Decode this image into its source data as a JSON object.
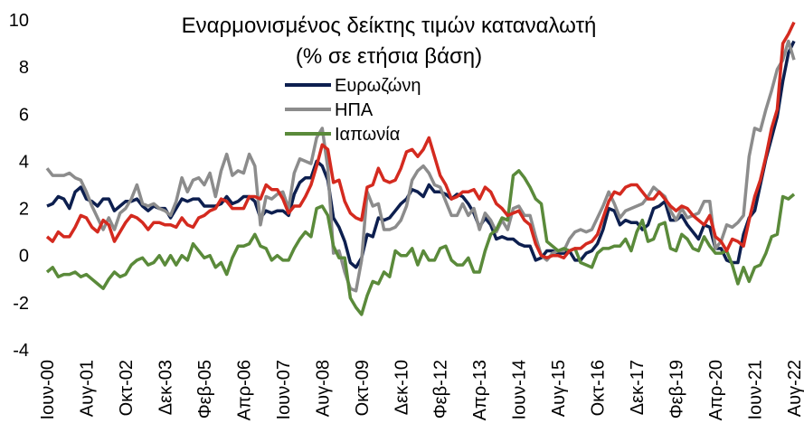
{
  "chart_data": {
    "type": "line",
    "title": [
      "Εναρμονισμένος δείκτης τιμών καταναλωτή",
      "(% σε ετήσια βάση)"
    ],
    "categories": [
      "Ιουν-00",
      null,
      null,
      null,
      null,
      null,
      null,
      "Αυγ-01",
      null,
      null,
      null,
      null,
      null,
      null,
      "Οκτ-02",
      null,
      null,
      null,
      null,
      null,
      null,
      "Δεκ-03",
      null,
      null,
      null,
      null,
      null,
      null,
      "Φεβ-05",
      null,
      null,
      null,
      null,
      null,
      null,
      "Απρ-06",
      null,
      null,
      null,
      null,
      null,
      null,
      "Ιουν-07",
      null,
      null,
      null,
      null,
      null,
      null,
      "Αυγ-08",
      null,
      null,
      null,
      null,
      null,
      null,
      "Οκτ-09",
      null,
      null,
      null,
      null,
      null,
      null,
      "Δεκ-10",
      null,
      null,
      null,
      null,
      null,
      null,
      "Φεβ-12",
      null,
      null,
      null,
      null,
      null,
      null,
      "Απρ-13",
      null,
      null,
      null,
      null,
      null,
      null,
      "Ιουν-14",
      null,
      null,
      null,
      null,
      null,
      null,
      "Αυγ-15",
      null,
      null,
      null,
      null,
      null,
      null,
      "Οκτ-16",
      null,
      null,
      null,
      null,
      null,
      null,
      "Δεκ-17",
      null,
      null,
      null,
      null,
      null,
      null,
      "Φεβ-19",
      null,
      null,
      null,
      null,
      null,
      null,
      "Απρ-20",
      null,
      null,
      null,
      null,
      null,
      null,
      "Ιουν-21",
      null,
      null,
      null,
      null,
      null,
      null,
      "Αυγ-22"
    ],
    "series": [
      {
        "name": "Ευρωζώνη",
        "color": "#0d1f4f",
        "values": [
          2.1,
          2.2,
          2.5,
          2.4,
          2.0,
          2.7,
          2.9,
          2.4,
          2.3,
          2.1,
          2.4,
          2.4,
          1.9,
          2.1,
          2.3,
          2.3,
          2.4,
          2.1,
          1.9,
          2.1,
          2.0,
          2.0,
          1.6,
          2.0,
          2.4,
          2.3,
          2.4,
          2.4,
          2.1,
          2.1,
          2.1,
          2.2,
          2.5,
          2.2,
          2.3,
          2.5,
          2.5,
          2.3,
          1.6,
          1.9,
          1.8,
          1.9,
          1.9,
          1.7,
          2.6,
          3.1,
          3.3,
          3.3,
          4.0,
          3.8,
          3.2,
          1.6,
          1.2,
          0.6,
          -0.3,
          -0.5,
          -0.1,
          0.9,
          0.8,
          1.6,
          1.5,
          1.6,
          1.9,
          2.2,
          2.4,
          2.8,
          2.7,
          2.5,
          3.0,
          2.7,
          2.7,
          2.6,
          2.4,
          2.6,
          2.5,
          2.2,
          1.8,
          1.2,
          1.6,
          1.3,
          0.7,
          0.8,
          0.7,
          0.7,
          0.5,
          0.4,
          0.4,
          -0.2,
          -0.1,
          0.2,
          0.2,
          0.1,
          0.1,
          0.2,
          -0.2,
          -0.2,
          0.1,
          0.2,
          0.5,
          1.1,
          2.0,
          1.9,
          1.3,
          1.5,
          1.4,
          1.4,
          1.1,
          1.3,
          2.0,
          2.1,
          2.3,
          1.5,
          1.5,
          1.7,
          1.3,
          1.0,
          0.7,
          1.3,
          1.2,
          0.3,
          0.3,
          -0.2,
          -0.3,
          -0.3,
          0.9,
          1.6,
          1.9,
          3.0,
          4.1,
          5.0,
          5.9,
          7.4,
          8.6,
          9.1
        ]
      },
      {
        "name": "ΗΠΑ",
        "color": "#8c8c8c",
        "values": [
          3.7,
          3.4,
          3.4,
          3.4,
          3.5,
          3.3,
          3.2,
          2.7,
          2.1,
          1.6,
          1.1,
          1.6,
          1.1,
          1.8,
          2.0,
          2.4,
          3.0,
          2.2,
          2.1,
          2.2,
          2.0,
          1.9,
          1.7,
          2.3,
          3.3,
          2.7,
          3.2,
          3.3,
          3.0,
          3.5,
          2.5,
          3.6,
          4.3,
          3.4,
          3.6,
          3.5,
          4.3,
          3.8,
          1.3,
          2.5,
          2.4,
          2.6,
          2.7,
          2.0,
          3.5,
          4.1,
          4.0,
          3.9,
          5.0,
          5.4,
          3.7,
          0.1,
          0.2,
          -0.7,
          -1.4,
          -1.5,
          -0.2,
          2.7,
          2.1,
          2.2,
          1.1,
          1.1,
          1.2,
          1.5,
          2.1,
          3.2,
          3.6,
          3.8,
          3.5,
          3.0,
          2.9,
          2.3,
          1.7,
          1.7,
          2.2,
          1.7,
          2.0,
          1.1,
          1.8,
          1.5,
          1.0,
          1.5,
          1.1,
          2.0,
          2.1,
          1.7,
          1.7,
          0.8,
          0.0,
          -0.2,
          0.1,
          0.2,
          0.2,
          0.7,
          1.0,
          1.1,
          1.0,
          1.1,
          1.6,
          2.1,
          2.7,
          2.2,
          1.6,
          1.9,
          2.0,
          2.1,
          2.2,
          2.5,
          2.9,
          2.7,
          2.5,
          1.9,
          1.5,
          2.0,
          1.6,
          1.7,
          1.8,
          2.3,
          2.3,
          0.3,
          0.6,
          1.3,
          1.2,
          1.4,
          1.7,
          4.2,
          5.4,
          5.3,
          6.2,
          7.0,
          7.9,
          8.3,
          9.1,
          8.3
        ]
      },
      {
        "name": "Ιαπωνία",
        "color": "#5a8a3a",
        "values": [
          -0.7,
          -0.5,
          -0.9,
          -0.8,
          -0.8,
          -0.7,
          -0.9,
          -0.8,
          -1.0,
          -1.2,
          -1.4,
          -1.0,
          -0.7,
          -0.9,
          -0.8,
          -0.4,
          -0.2,
          -0.1,
          -0.4,
          -0.3,
          0.0,
          -0.4,
          0.0,
          -0.4,
          0.0,
          -0.2,
          0.5,
          0.2,
          -0.1,
          0.0,
          -0.5,
          -0.3,
          -0.8,
          -0.1,
          0.4,
          0.4,
          0.5,
          0.9,
          0.4,
          0.3,
          -0.2,
          0.0,
          -0.2,
          -0.2,
          0.3,
          0.7,
          1.0,
          0.8,
          2.0,
          2.1,
          1.7,
          0.4,
          -0.1,
          -0.1,
          -1.8,
          -2.2,
          -2.5,
          -1.7,
          -1.1,
          -1.2,
          -0.7,
          -0.9,
          0.2,
          0.0,
          0.0,
          0.3,
          -0.4,
          0.2,
          -0.2,
          -0.2,
          0.3,
          0.4,
          -0.2,
          -0.4,
          -0.4,
          -0.1,
          -0.7,
          -0.7,
          0.2,
          0.9,
          1.1,
          1.6,
          1.5,
          3.4,
          3.6,
          3.3,
          2.9,
          2.4,
          2.2,
          0.6,
          0.4,
          0.2,
          0.3,
          0.2,
          0.3,
          -0.3,
          -0.4,
          -0.5,
          0.1,
          0.3,
          0.3,
          0.4,
          0.4,
          0.7,
          0.2,
          1.0,
          1.5,
          0.6,
          0.7,
          1.3,
          1.4,
          0.3,
          0.2,
          0.9,
          0.7,
          0.3,
          0.2,
          0.8,
          0.4,
          0.1,
          0.1,
          0.2,
          -0.4,
          -1.2,
          -0.5,
          -1.1,
          -0.5,
          -0.4,
          0.1,
          0.8,
          0.9,
          2.5,
          2.4,
          2.6
        ]
      },
      {
        "color": "#d42a1f",
        "values": [
          0.8,
          0.6,
          1.0,
          0.8,
          0.8,
          1.2,
          1.7,
          1.6,
          1.2,
          1.0,
          1.5,
          1.3,
          0.6,
          1.0,
          1.4,
          1.7,
          1.6,
          1.4,
          1.1,
          1.4,
          1.4,
          1.3,
          1.3,
          1.2,
          1.6,
          1.3,
          1.2,
          1.6,
          1.7,
          1.9,
          2.0,
          2.4,
          2.3,
          2.0,
          2.0,
          2.0,
          2.5,
          2.5,
          2.4,
          3.0,
          2.8,
          2.8,
          2.4,
          1.8,
          2.1,
          2.1,
          2.5,
          3.0,
          3.8,
          4.7,
          4.5,
          3.1,
          3.2,
          2.3,
          1.8,
          1.6,
          1.5,
          2.9,
          3.0,
          3.7,
          3.2,
          3.1,
          3.2,
          3.7,
          4.4,
          4.5,
          4.2,
          4.5,
          5.0,
          4.2,
          3.4,
          3.0,
          2.4,
          2.5,
          2.7,
          2.7,
          2.8,
          2.4,
          2.9,
          2.7,
          2.2,
          2.0,
          1.7,
          1.8,
          1.9,
          1.5,
          1.3,
          0.5,
          0.0,
          -0.1,
          0.0,
          0.0,
          -0.1,
          0.2,
          0.3,
          0.3,
          0.5,
          0.6,
          0.9,
          1.6,
          2.3,
          2.7,
          2.6,
          2.9,
          3.0,
          3.0,
          2.7,
          2.4,
          2.4,
          2.7,
          2.4,
          2.1,
          1.9,
          2.1,
          2.0,
          1.7,
          1.5,
          1.3,
          1.7,
          0.8,
          0.6,
          0.2,
          0.7,
          0.6,
          0.4,
          1.5,
          2.5,
          3.2,
          4.2,
          5.4,
          6.2,
          9.0,
          9.4,
          9.9
        ]
      }
    ],
    "ylim": [
      -4,
      10
    ],
    "yticks": [
      -4,
      -2,
      0,
      2,
      4,
      6,
      8,
      10
    ]
  }
}
